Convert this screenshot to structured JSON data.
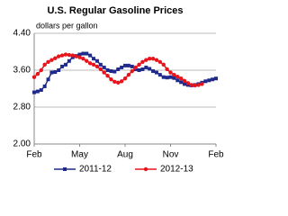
{
  "chart_data": {
    "type": "line",
    "title": "U.S. Regular Gasoline Prices",
    "subtitle": "dollars per gallon",
    "categories": [
      "Feb",
      null,
      null,
      null,
      null,
      null,
      null,
      null,
      null,
      null,
      null,
      null,
      null,
      "May",
      null,
      null,
      null,
      null,
      null,
      null,
      null,
      null,
      null,
      null,
      null,
      null,
      "Aug",
      null,
      null,
      null,
      null,
      null,
      null,
      null,
      null,
      null,
      null,
      null,
      null,
      "Nov",
      null,
      null,
      null,
      null,
      null,
      null,
      null,
      null,
      null,
      null,
      null,
      null,
      "Feb"
    ],
    "series": [
      {
        "name": "2011-12",
        "color": "#1f2a8c",
        "marker": "square",
        "values": [
          3.12,
          3.14,
          3.17,
          3.25,
          3.4,
          3.55,
          3.56,
          3.6,
          3.68,
          3.72,
          3.8,
          3.88,
          3.91,
          3.94,
          3.96,
          3.96,
          3.92,
          3.85,
          3.8,
          3.72,
          3.66,
          3.6,
          3.58,
          3.57,
          3.62,
          3.66,
          3.7,
          3.7,
          3.68,
          3.62,
          3.6,
          3.62,
          3.66,
          3.63,
          3.58,
          3.55,
          3.5,
          3.45,
          3.44,
          3.45,
          3.43,
          3.38,
          3.34,
          3.3,
          3.28,
          3.27,
          3.28,
          3.3,
          3.33,
          3.36,
          3.38,
          3.4,
          3.42
        ]
      },
      {
        "name": "2012-13",
        "color": "#e8141c",
        "marker": "circle",
        "values": [
          3.45,
          3.52,
          3.6,
          3.72,
          3.78,
          3.82,
          3.86,
          3.9,
          3.92,
          3.94,
          3.93,
          3.92,
          3.9,
          3.88,
          3.85,
          3.8,
          3.75,
          3.72,
          3.68,
          3.62,
          3.55,
          3.48,
          3.4,
          3.35,
          3.33,
          3.36,
          3.42,
          3.5,
          3.58,
          3.66,
          3.72,
          3.78,
          3.82,
          3.85,
          3.85,
          3.82,
          3.78,
          3.72,
          3.62,
          3.55,
          3.5,
          3.46,
          3.42,
          3.37,
          3.32,
          3.28,
          3.27,
          3.28,
          3.3,
          null,
          null,
          null,
          null
        ]
      }
    ],
    "ylim": [
      2.0,
      4.4
    ],
    "yticks": [
      {
        "value": 2.0,
        "label": "2.00"
      },
      {
        "value": 2.8,
        "label": "2.80"
      },
      {
        "value": 3.6,
        "label": "3.60"
      },
      {
        "value": 4.4,
        "label": "4.40"
      }
    ],
    "grid": true,
    "legend": "bottom"
  }
}
